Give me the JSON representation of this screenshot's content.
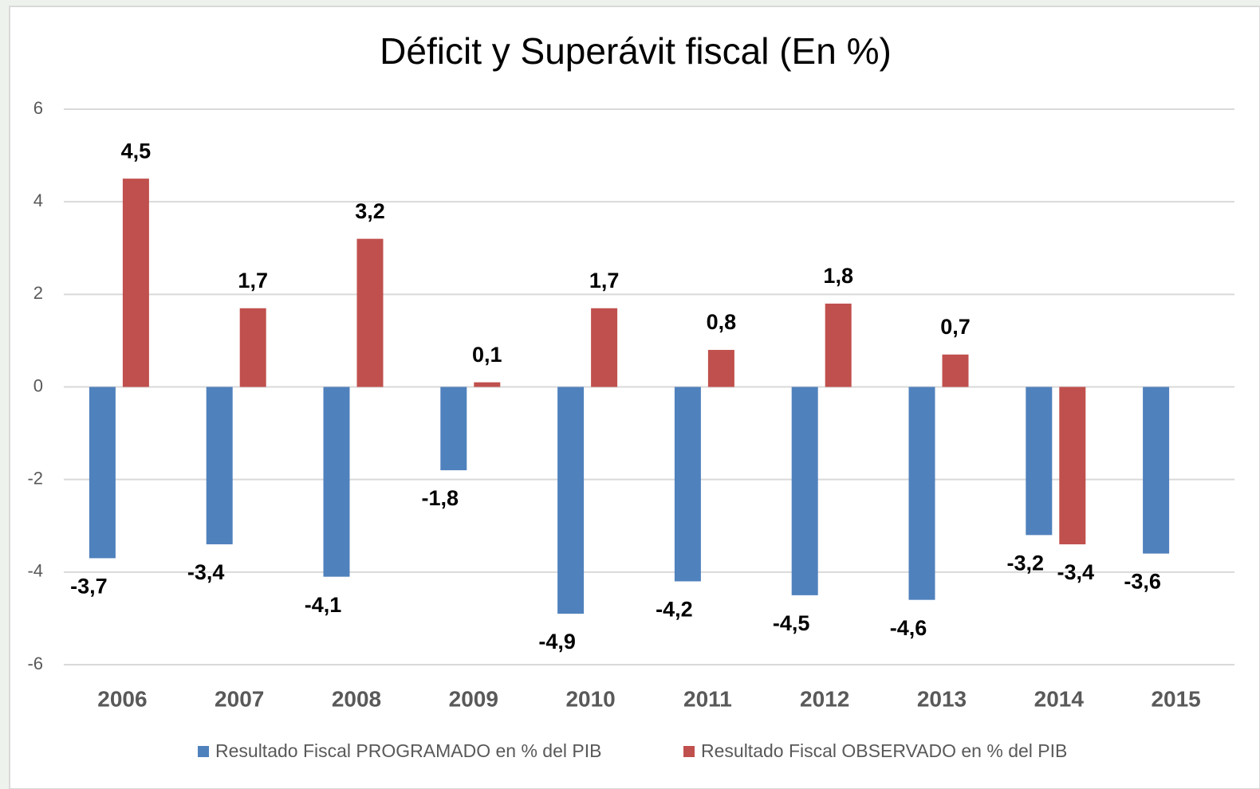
{
  "chart_data": {
    "type": "bar",
    "title": "Déficit y Superávit fiscal (En %)",
    "categories": [
      "2006",
      "2007",
      "2008",
      "2009",
      "2010",
      "2011",
      "2012",
      "2013",
      "2014",
      "2015"
    ],
    "series": [
      {
        "name": "Resultado Fiscal PROGRAMADO en % del PIB",
        "color": "#4f81bd",
        "values": [
          -3.7,
          -3.4,
          -4.1,
          -1.8,
          -4.9,
          -4.2,
          -4.5,
          -4.6,
          -3.2,
          -3.6
        ],
        "value_labels": [
          "-3,7",
          "-3,4",
          "-4,1",
          "-1,8",
          "-4,9",
          "-4,2",
          "-4,5",
          "-4,6",
          "-3,2",
          "-3,6"
        ]
      },
      {
        "name": "Resultado Fiscal OBSERVADO en % del PIB",
        "color": "#c0504d",
        "values": [
          4.5,
          1.7,
          3.2,
          0.1,
          1.7,
          0.8,
          1.8,
          0.7,
          -3.4,
          null
        ],
        "value_labels": [
          "4,5",
          "1,7",
          "3,2",
          "0,1",
          "1,7",
          "0,8",
          "1,8",
          "0,7",
          "-3,4",
          null
        ]
      }
    ],
    "ylim": [
      -6,
      6
    ],
    "yticks": [
      -6,
      -4,
      -2,
      0,
      2,
      4,
      6
    ],
    "grid": true,
    "legend": "bottom"
  }
}
